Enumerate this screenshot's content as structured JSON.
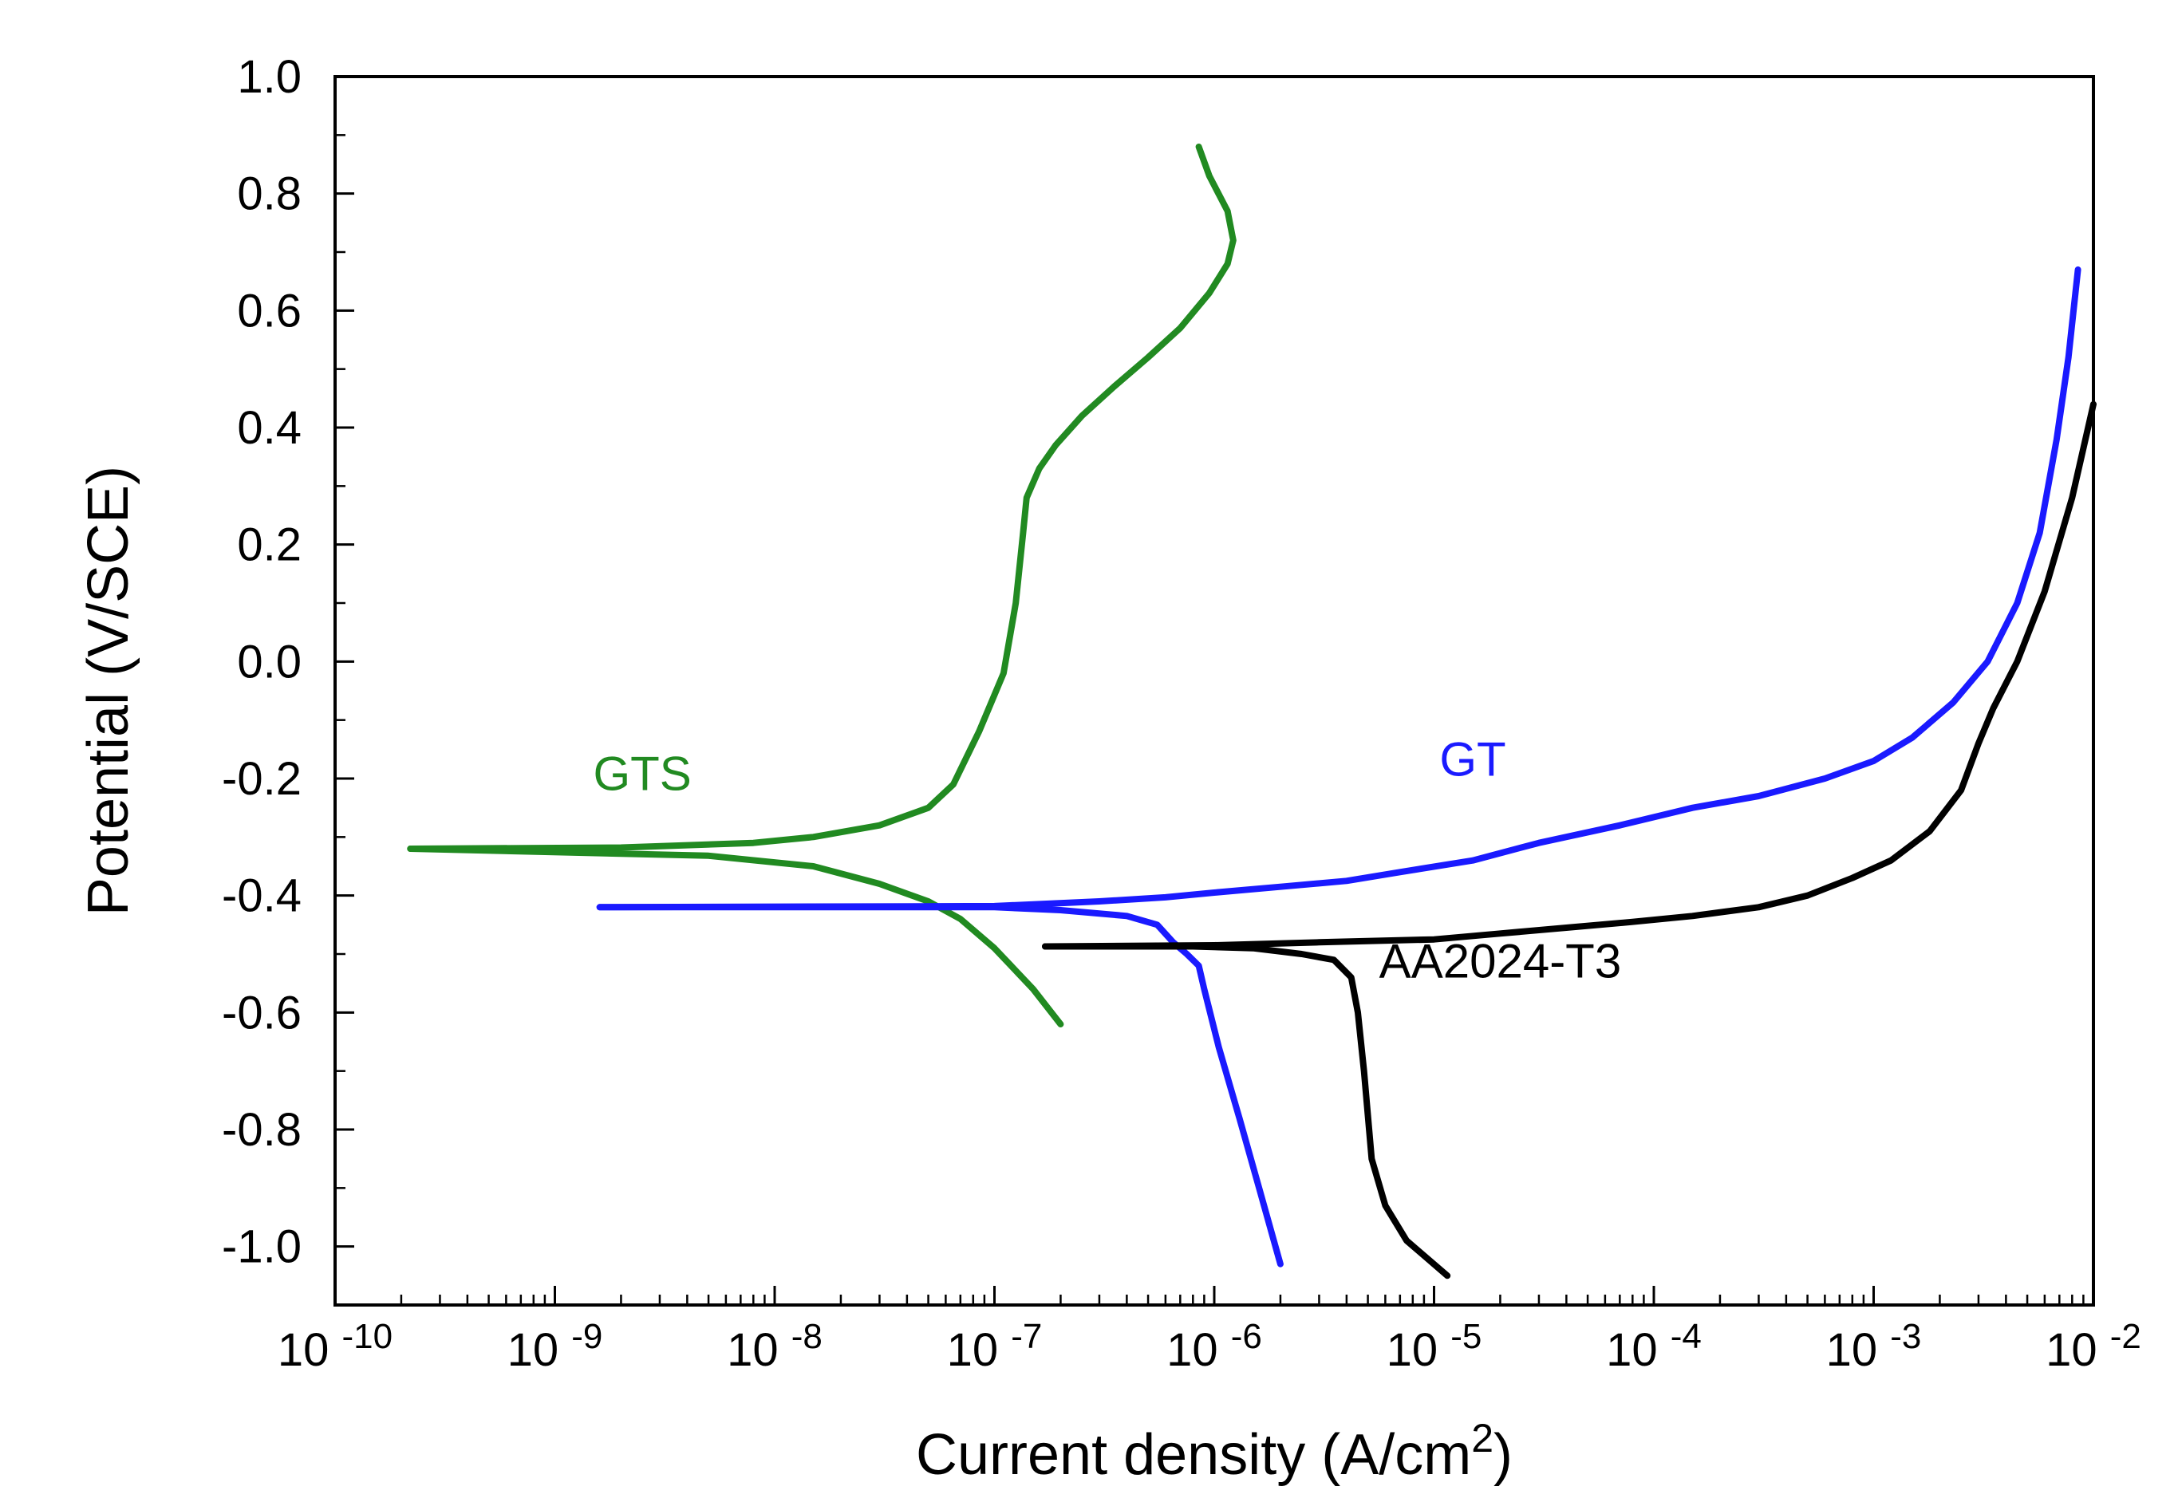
{
  "chart_data": {
    "type": "line",
    "title": "",
    "xlabel": "Current density (A/cm",
    "xlabel_sup": "2",
    "xlabel_end": ")",
    "ylabel": "Potential (V/SCE)",
    "xscale": "log",
    "xlim": [
      1e-10,
      0.01
    ],
    "ylim": [
      -1.1,
      1.0
    ],
    "grid": false,
    "legend": "none (inline labels)",
    "x_tick_labels": [
      {
        "base": "10",
        "exp": "-10"
      },
      {
        "base": "10",
        "exp": "-9"
      },
      {
        "base": "10",
        "exp": "-8"
      },
      {
        "base": "10",
        "exp": "-7"
      },
      {
        "base": "10",
        "exp": "-6"
      },
      {
        "base": "10",
        "exp": "-5"
      },
      {
        "base": "10",
        "exp": "-4"
      },
      {
        "base": "10",
        "exp": "-3"
      },
      {
        "base": "10",
        "exp": "-2"
      }
    ],
    "y_tick_labels": [
      "1.0",
      "0.8",
      "0.6",
      "0.4",
      "0.2",
      "0.0",
      "-0.2",
      "-0.4",
      "-0.6",
      "-0.8",
      "-1.0"
    ],
    "series": [
      {
        "name": "GTS",
        "color": "#218a21",
        "cathodic": [
          [
            2.2e-10,
            -0.32
          ],
          [
            5e-09,
            -0.332
          ],
          [
            1.5e-08,
            -0.35
          ],
          [
            3e-08,
            -0.38
          ],
          [
            5e-08,
            -0.41
          ],
          [
            7e-08,
            -0.44
          ],
          [
            1e-07,
            -0.49
          ],
          [
            1.5e-07,
            -0.56
          ],
          [
            2e-07,
            -0.62
          ]
        ],
        "anodic": [
          [
            2.2e-10,
            -0.32
          ],
          [
            2e-09,
            -0.318
          ],
          [
            8e-09,
            -0.31
          ],
          [
            1.5e-08,
            -0.3
          ],
          [
            3e-08,
            -0.28
          ],
          [
            5e-08,
            -0.25
          ],
          [
            6.5e-08,
            -0.21
          ],
          [
            8.5e-08,
            -0.12
          ],
          [
            1.1e-07,
            -0.02
          ],
          [
            1.25e-07,
            0.1
          ],
          [
            1.35e-07,
            0.22
          ],
          [
            1.4e-07,
            0.28
          ],
          [
            1.6e-07,
            0.33
          ],
          [
            1.9e-07,
            0.37
          ],
          [
            2.5e-07,
            0.42
          ],
          [
            3.5e-07,
            0.47
          ],
          [
            5e-07,
            0.52
          ],
          [
            7e-07,
            0.57
          ],
          [
            9.5e-07,
            0.63
          ],
          [
            1.15e-06,
            0.68
          ],
          [
            1.22e-06,
            0.72
          ],
          [
            1.15e-06,
            0.77
          ],
          [
            9.5e-07,
            0.83
          ],
          [
            8.5e-07,
            0.88
          ]
        ]
      },
      {
        "name": "GT",
        "color": "#1a1aff",
        "cathodic": [
          [
            1.6e-09,
            -0.42
          ],
          [
            1e-07,
            -0.42
          ],
          [
            2e-07,
            -0.425
          ],
          [
            4e-07,
            -0.435
          ],
          [
            5.5e-07,
            -0.45
          ],
          [
            6.5e-07,
            -0.48
          ],
          [
            7.5e-07,
            -0.5
          ],
          [
            8.5e-07,
            -0.52
          ],
          [
            9e-07,
            -0.56
          ],
          [
            1.05e-06,
            -0.66
          ],
          [
            1.3e-06,
            -0.78
          ],
          [
            1.6e-06,
            -0.9
          ],
          [
            2e-06,
            -1.03
          ]
        ],
        "anodic": [
          [
            1.6e-09,
            -0.42
          ],
          [
            1e-07,
            -0.418
          ],
          [
            3e-07,
            -0.41
          ],
          [
            6e-07,
            -0.403
          ],
          [
            1e-06,
            -0.395
          ],
          [
            2e-06,
            -0.385
          ],
          [
            4e-06,
            -0.375
          ],
          [
            7e-06,
            -0.36
          ],
          [
            1.5e-05,
            -0.34
          ],
          [
            3e-05,
            -0.31
          ],
          [
            7e-05,
            -0.28
          ],
          [
            0.00015,
            -0.25
          ],
          [
            0.0003,
            -0.23
          ],
          [
            0.0006,
            -0.2
          ],
          [
            0.001,
            -0.17
          ],
          [
            0.0015,
            -0.13
          ],
          [
            0.0023,
            -0.07
          ],
          [
            0.0033,
            0.0
          ],
          [
            0.0045,
            0.1
          ],
          [
            0.0057,
            0.22
          ],
          [
            0.0068,
            0.38
          ],
          [
            0.0077,
            0.52
          ],
          [
            0.0085,
            0.67
          ]
        ]
      },
      {
        "name": "AA2024-T3",
        "color": "#000000",
        "cathodic": [
          [
            1.7e-07,
            -0.487
          ],
          [
            8e-07,
            -0.487
          ],
          [
            1.5e-06,
            -0.49
          ],
          [
            2.5e-06,
            -0.5
          ],
          [
            3.5e-06,
            -0.51
          ],
          [
            4.2e-06,
            -0.54
          ],
          [
            4.5e-06,
            -0.6
          ],
          [
            4.8e-06,
            -0.7
          ],
          [
            5.2e-06,
            -0.85
          ],
          [
            6e-06,
            -0.93
          ],
          [
            7.5e-06,
            -0.99
          ],
          [
            1.15e-05,
            -1.05
          ]
        ],
        "anodic": [
          [
            1.7e-07,
            -0.487
          ],
          [
            1e-06,
            -0.485
          ],
          [
            3e-06,
            -0.48
          ],
          [
            1e-05,
            -0.475
          ],
          [
            2e-05,
            -0.465
          ],
          [
            4e-05,
            -0.455
          ],
          [
            8e-05,
            -0.445
          ],
          [
            0.00015,
            -0.435
          ],
          [
            0.0003,
            -0.42
          ],
          [
            0.0005,
            -0.4
          ],
          [
            0.0008,
            -0.37
          ],
          [
            0.0012,
            -0.34
          ],
          [
            0.0018,
            -0.29
          ],
          [
            0.0025,
            -0.22
          ],
          [
            0.003,
            -0.14
          ],
          [
            0.0035,
            -0.08
          ],
          [
            0.0045,
            0.0
          ],
          [
            0.006,
            0.12
          ],
          [
            0.008,
            0.28
          ],
          [
            0.01,
            0.44
          ]
        ]
      }
    ],
    "annotations": [
      {
        "text": "GTS",
        "color": "#218a21",
        "x": 2.5e-09,
        "y": -0.22
      },
      {
        "text": "GT",
        "color": "#1a1aff",
        "x": 1.5e-05,
        "y": -0.195
      },
      {
        "text": "AA2024-T3",
        "color": "#000000",
        "x": 2e-05,
        "y": -0.54
      }
    ]
  }
}
